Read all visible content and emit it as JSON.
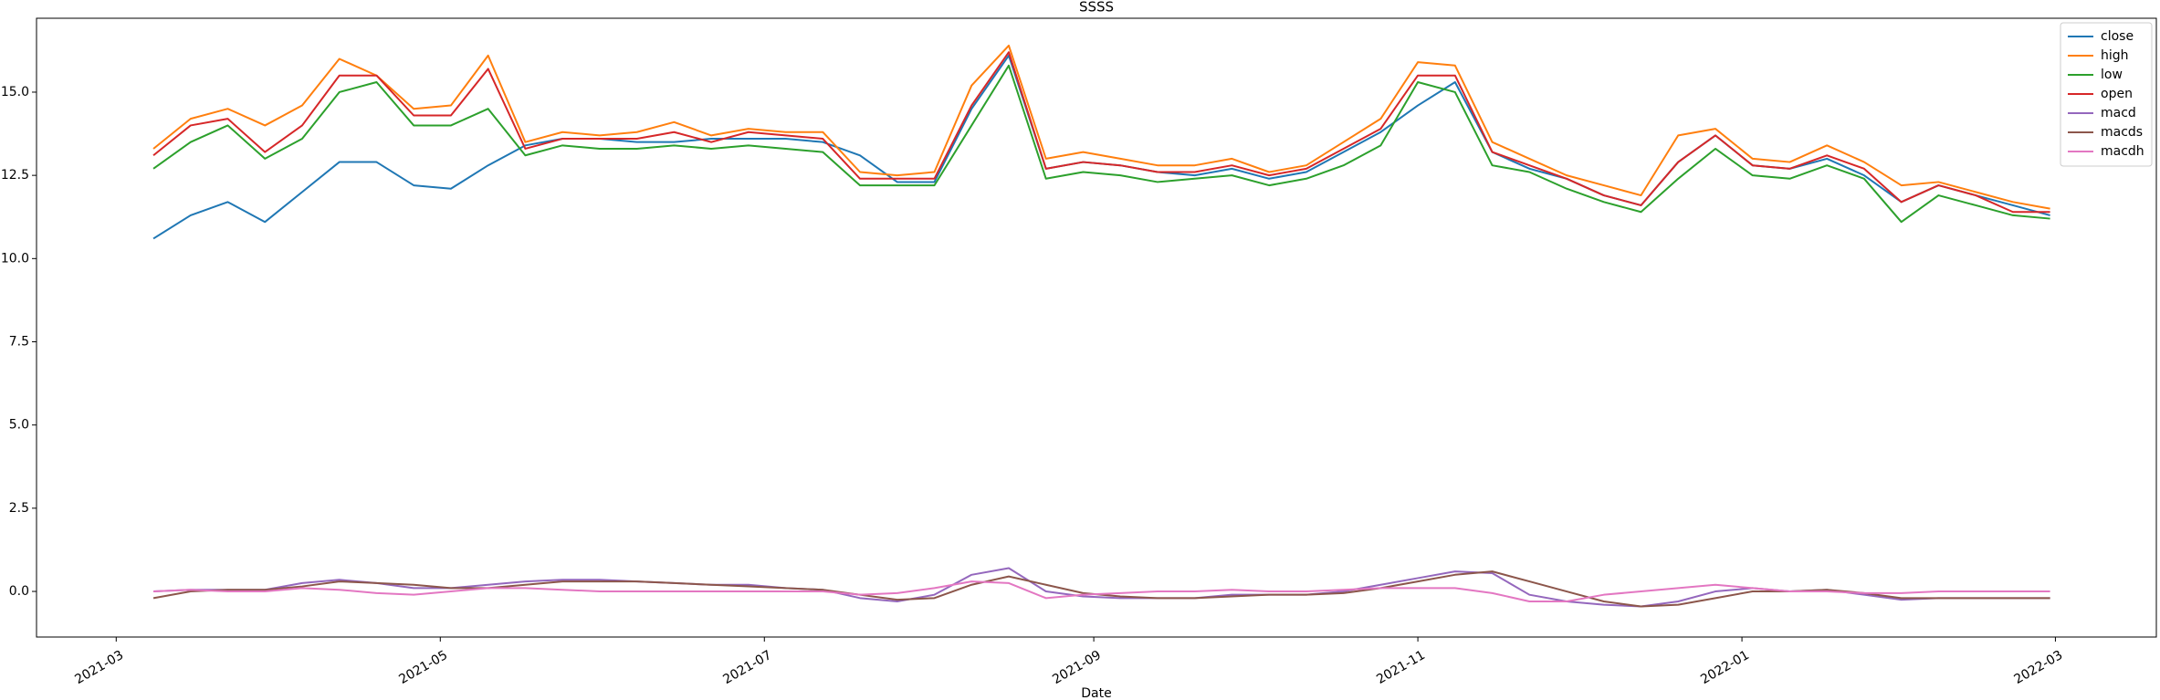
{
  "chart_data": {
    "type": "line",
    "title": "SSSS",
    "x_label": "Date",
    "x": [
      "2021-03-08",
      "2021-03-15",
      "2021-03-22",
      "2021-03-29",
      "2021-04-05",
      "2021-04-12",
      "2021-04-19",
      "2021-04-26",
      "2021-05-03",
      "2021-05-10",
      "2021-05-17",
      "2021-05-24",
      "2021-05-31",
      "2021-06-07",
      "2021-06-14",
      "2021-06-21",
      "2021-06-28",
      "2021-07-05",
      "2021-07-12",
      "2021-07-19",
      "2021-07-26",
      "2021-08-02",
      "2021-08-09",
      "2021-08-16",
      "2021-08-23",
      "2021-08-30",
      "2021-09-06",
      "2021-09-13",
      "2021-09-20",
      "2021-09-27",
      "2021-10-04",
      "2021-10-11",
      "2021-10-18",
      "2021-10-25",
      "2021-11-01",
      "2021-11-08",
      "2021-11-15",
      "2021-11-22",
      "2021-11-29",
      "2021-12-06",
      "2021-12-13",
      "2021-12-20",
      "2021-12-27",
      "2022-01-03",
      "2022-01-10",
      "2022-01-17",
      "2022-01-24",
      "2022-01-31",
      "2022-02-07",
      "2022-02-14",
      "2022-02-21",
      "2022-02-28"
    ],
    "series": [
      {
        "name": "close",
        "color": "#1f77b4",
        "values": [
          10.6,
          11.3,
          11.7,
          11.1,
          12.0,
          12.9,
          12.9,
          12.2,
          12.1,
          12.8,
          13.4,
          13.6,
          13.6,
          13.5,
          13.5,
          13.6,
          13.6,
          13.6,
          13.5,
          13.1,
          12.3,
          12.3,
          14.5,
          16.1,
          12.7,
          12.9,
          12.8,
          12.6,
          12.5,
          12.7,
          12.4,
          12.6,
          13.2,
          13.8,
          14.6,
          15.3,
          13.2,
          12.7,
          12.4,
          11.9,
          11.6,
          12.9,
          13.7,
          12.8,
          12.7,
          13.0,
          12.5,
          11.7,
          12.2,
          11.9,
          11.6,
          11.3
        ]
      },
      {
        "name": "high",
        "color": "#ff7f0e",
        "values": [
          13.3,
          14.2,
          14.5,
          14.0,
          14.6,
          16.0,
          15.5,
          14.5,
          14.6,
          16.1,
          13.5,
          13.8,
          13.7,
          13.8,
          14.1,
          13.7,
          13.9,
          13.8,
          13.8,
          12.6,
          12.5,
          12.6,
          15.2,
          16.4,
          13.0,
          13.2,
          13.0,
          12.8,
          12.8,
          13.0,
          12.6,
          12.8,
          13.5,
          14.2,
          15.9,
          15.8,
          13.5,
          13.0,
          12.5,
          12.2,
          11.9,
          13.7,
          13.9,
          13.0,
          12.9,
          13.4,
          12.9,
          12.2,
          12.3,
          12.0,
          11.7,
          11.5
        ]
      },
      {
        "name": "low",
        "color": "#2ca02c",
        "values": [
          12.7,
          13.5,
          14.0,
          13.0,
          13.6,
          15.0,
          15.3,
          14.0,
          14.0,
          14.5,
          13.1,
          13.4,
          13.3,
          13.3,
          13.4,
          13.3,
          13.4,
          13.3,
          13.2,
          12.2,
          12.2,
          12.2,
          14.0,
          15.8,
          12.4,
          12.6,
          12.5,
          12.3,
          12.4,
          12.5,
          12.2,
          12.4,
          12.8,
          13.4,
          15.3,
          15.0,
          12.8,
          12.6,
          12.1,
          11.7,
          11.4,
          12.4,
          13.3,
          12.5,
          12.4,
          12.8,
          12.4,
          11.1,
          11.9,
          11.6,
          11.3,
          11.2
        ]
      },
      {
        "name": "open",
        "color": "#d62728",
        "values": [
          13.1,
          14.0,
          14.2,
          13.2,
          14.0,
          15.5,
          15.5,
          14.3,
          14.3,
          15.7,
          13.3,
          13.6,
          13.6,
          13.6,
          13.8,
          13.5,
          13.8,
          13.7,
          13.6,
          12.4,
          12.4,
          12.4,
          14.6,
          16.2,
          12.7,
          12.9,
          12.8,
          12.6,
          12.6,
          12.8,
          12.5,
          12.7,
          13.3,
          13.9,
          15.5,
          15.5,
          13.2,
          12.8,
          12.4,
          11.9,
          11.6,
          12.9,
          13.7,
          12.8,
          12.7,
          13.1,
          12.7,
          11.7,
          12.2,
          11.9,
          11.4,
          11.4
        ]
      },
      {
        "name": "macd",
        "color": "#9467bd",
        "values": [
          0.0,
          0.05,
          0.05,
          0.05,
          0.25,
          0.35,
          0.25,
          0.1,
          0.1,
          0.2,
          0.3,
          0.35,
          0.35,
          0.3,
          0.25,
          0.2,
          0.2,
          0.1,
          0.05,
          -0.2,
          -0.3,
          -0.1,
          0.5,
          0.7,
          0.0,
          -0.15,
          -0.2,
          -0.2,
          -0.2,
          -0.1,
          -0.1,
          -0.1,
          0.0,
          0.2,
          0.4,
          0.6,
          0.55,
          -0.1,
          -0.3,
          -0.4,
          -0.45,
          -0.3,
          0.0,
          0.1,
          0.0,
          0.05,
          -0.1,
          -0.25,
          -0.2,
          -0.2,
          -0.2,
          -0.2
        ]
      },
      {
        "name": "macds",
        "color": "#8c564b",
        "values": [
          -0.2,
          0.0,
          0.05,
          0.05,
          0.15,
          0.3,
          0.25,
          0.2,
          0.1,
          0.1,
          0.2,
          0.3,
          0.3,
          0.3,
          0.25,
          0.2,
          0.15,
          0.1,
          0.05,
          -0.1,
          -0.25,
          -0.2,
          0.2,
          0.45,
          0.2,
          -0.05,
          -0.15,
          -0.2,
          -0.2,
          -0.15,
          -0.1,
          -0.1,
          -0.05,
          0.1,
          0.3,
          0.5,
          0.6,
          0.3,
          0.0,
          -0.3,
          -0.45,
          -0.4,
          -0.2,
          0.0,
          0.0,
          0.05,
          -0.05,
          -0.2,
          -0.2,
          -0.2,
          -0.2,
          -0.2
        ]
      },
      {
        "name": "macdh",
        "color": "#e377c2",
        "values": [
          0.0,
          0.05,
          0.0,
          0.0,
          0.1,
          0.05,
          -0.05,
          -0.1,
          0.0,
          0.1,
          0.1,
          0.05,
          0.0,
          0.0,
          0.0,
          0.0,
          0.0,
          0.0,
          0.0,
          -0.1,
          -0.05,
          0.1,
          0.3,
          0.25,
          -0.2,
          -0.1,
          -0.05,
          0.0,
          0.0,
          0.05,
          0.0,
          0.0,
          0.05,
          0.1,
          0.1,
          0.1,
          -0.05,
          -0.3,
          -0.3,
          -0.1,
          0.0,
          0.1,
          0.2,
          0.1,
          0.0,
          0.0,
          -0.05,
          -0.05,
          0.0,
          0.0,
          0.0,
          0.0
        ]
      }
    ],
    "xlim": [
      "2021-02-14",
      "2022-03-20"
    ],
    "xticks": [
      {
        "value": "2021-03-01",
        "label": "2021-03"
      },
      {
        "value": "2021-05-01",
        "label": "2021-05"
      },
      {
        "value": "2021-07-01",
        "label": "2021-07"
      },
      {
        "value": "2021-09-01",
        "label": "2021-09"
      },
      {
        "value": "2021-11-01",
        "label": "2021-11"
      },
      {
        "value": "2022-01-01",
        "label": "2022-01"
      },
      {
        "value": "2022-03-01",
        "label": "2022-03"
      }
    ],
    "ylim": [
      -1.37,
      17.22
    ],
    "yticks": [
      {
        "value": 0,
        "label": "0.0"
      },
      2.5,
      {
        "value": 5,
        "label": "5.0"
      },
      7.5,
      {
        "value": 10,
        "label": "10.0"
      },
      12.5,
      {
        "value": 15,
        "label": "15.0"
      }
    ],
    "grid": false,
    "legend": "upper right"
  }
}
